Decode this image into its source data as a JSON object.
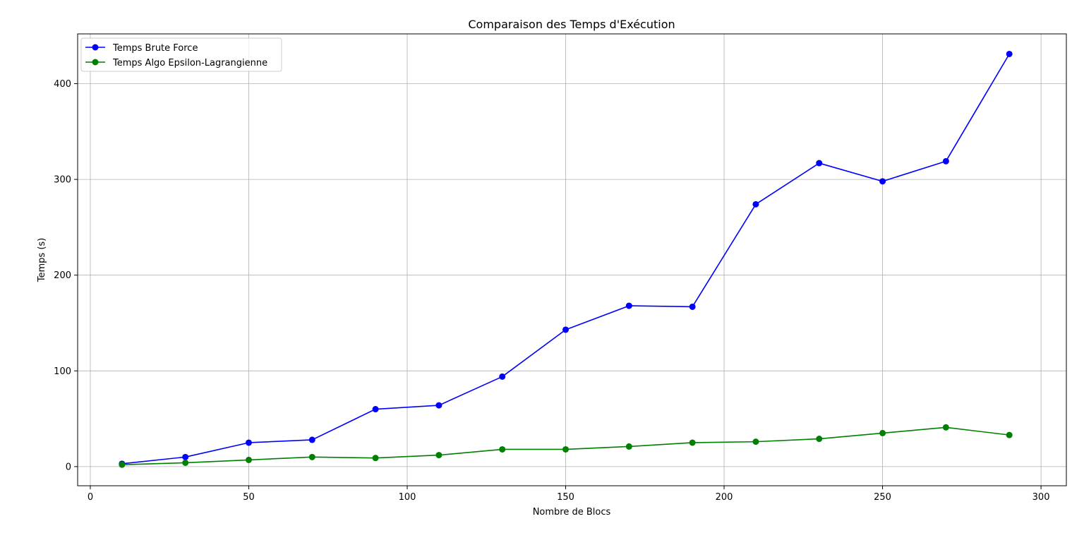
{
  "chart_data": {
    "type": "line",
    "title": "Comparaison des Temps d'Exécution",
    "xlabel": "Nombre de Blocs",
    "ylabel": "Temps (s)",
    "xlim": [
      -4,
      308
    ],
    "ylim": [
      -20,
      452
    ],
    "xticks": [
      0,
      50,
      100,
      150,
      200,
      250,
      300
    ],
    "yticks": [
      0,
      100,
      200,
      300,
      400
    ],
    "grid": true,
    "legend_position": "top-left",
    "x": [
      10,
      30,
      50,
      70,
      90,
      110,
      130,
      150,
      170,
      190,
      210,
      230,
      250,
      270,
      290
    ],
    "series": [
      {
        "name": "Temps Brute Force",
        "color": "#0000ff",
        "marker": "circle",
        "values": [
          3,
          10,
          25,
          28,
          60,
          64,
          94,
          143,
          168,
          167,
          274,
          317,
          298,
          319,
          431
        ]
      },
      {
        "name": "Temps Algo Epsilon-Lagrangienne",
        "color": "#008000",
        "marker": "circle",
        "values": [
          2,
          4,
          7,
          10,
          9,
          12,
          18,
          18,
          21,
          25,
          26,
          29,
          35,
          41,
          33
        ]
      }
    ]
  }
}
